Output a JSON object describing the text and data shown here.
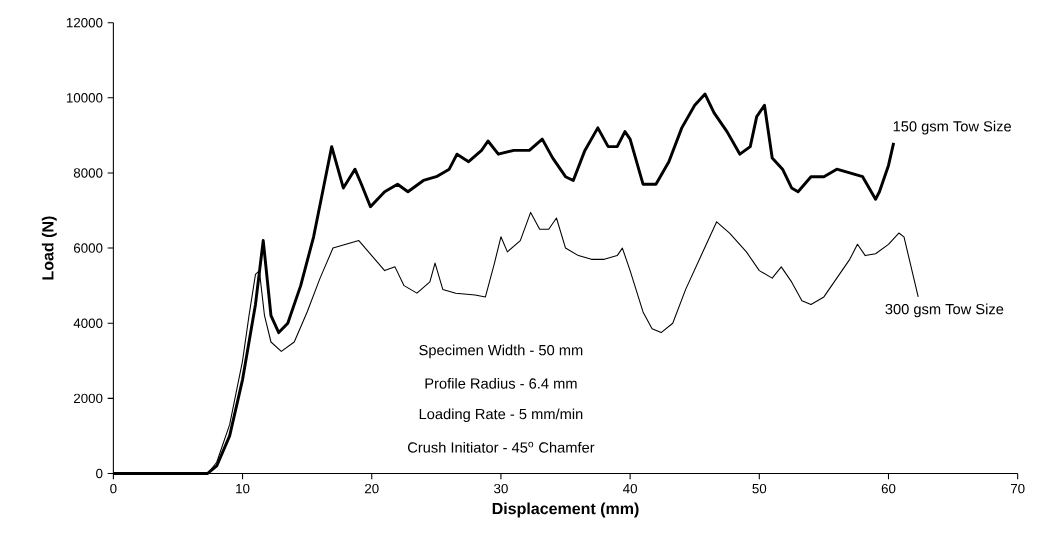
{
  "chart_data": {
    "type": "line",
    "xlabel": "Displacement (mm)",
    "ylabel": "Load (N)",
    "xlim": [
      0,
      70
    ],
    "ylim": [
      0,
      12000
    ],
    "xticks": [
      0,
      10,
      20,
      30,
      40,
      50,
      60,
      70
    ],
    "yticks": [
      0,
      2000,
      4000,
      6000,
      8000,
      10000,
      12000
    ],
    "grid": false,
    "legend": false,
    "marker": "none",
    "line_style": "solid",
    "series": [
      {
        "name": "150 gsm Tow Size",
        "color": "#000000",
        "x": [
          0,
          7.3,
          8,
          9,
          10,
          11,
          11.6,
          12.2,
          12.8,
          13.5,
          14.5,
          15.5,
          16.2,
          16.9,
          17.8,
          18.7,
          19.2,
          19.9,
          21,
          22,
          22.8,
          24,
          25,
          26,
          26.6,
          27.5,
          28.5,
          29,
          29.8,
          31,
          32.2,
          33.2,
          34,
          35,
          35.6,
          36.5,
          37.5,
          38.3,
          39,
          39.6,
          40,
          41,
          42,
          43,
          44,
          45,
          45.8,
          46.5,
          47.5,
          48.5,
          49.3,
          49.8,
          50.4,
          51,
          51.8,
          52.5,
          53,
          54,
          55,
          56,
          57,
          58,
          58.5,
          59,
          59.3,
          60,
          60.4
        ],
        "values": [
          0,
          0,
          200,
          1000,
          2500,
          4500,
          6200,
          4200,
          3750,
          4000,
          5000,
          6300,
          7500,
          8700,
          7600,
          8100,
          7700,
          7100,
          7500,
          7700,
          7500,
          7800,
          7900,
          8100,
          8500,
          8300,
          8600,
          8850,
          8500,
          8600,
          8600,
          8900,
          8400,
          7900,
          7800,
          8600,
          9200,
          8700,
          8700,
          9100,
          8900,
          7700,
          7700,
          8300,
          9200,
          9800,
          10100,
          9600,
          9100,
          8500,
          8700,
          9500,
          9800,
          8400,
          8100,
          7600,
          7500,
          7900,
          7900,
          8100,
          8000,
          7900,
          7600,
          7300,
          7500,
          8200,
          8800
        ]
      },
      {
        "name": "300 gsm Tow Size",
        "color": "#000000",
        "x": [
          0,
          7.3,
          8,
          9,
          10,
          10.5,
          11,
          11.3,
          11.7,
          12.2,
          13,
          14,
          15,
          16,
          17,
          18,
          19,
          20,
          21,
          21.8,
          22.5,
          23.5,
          24.5,
          24.9,
          25.5,
          26.5,
          28,
          28.8,
          29.5,
          30,
          30.5,
          31.5,
          32.3,
          33,
          33.7,
          34.3,
          35,
          36,
          37,
          38,
          39,
          39.4,
          40,
          41,
          41.7,
          42.4,
          43.3,
          44.3,
          45.5,
          46.7,
          47.7,
          49,
          50,
          51,
          51.7,
          52.5,
          53.3,
          54,
          55,
          56,
          57,
          57.6,
          58.2,
          59,
          60,
          60.8,
          61.2,
          62.3
        ],
        "values": [
          0,
          0,
          300,
          1300,
          3000,
          4200,
          5300,
          5400,
          4200,
          3500,
          3250,
          3500,
          4300,
          5200,
          6000,
          6100,
          6200,
          5800,
          5400,
          5500,
          5000,
          4800,
          5100,
          5600,
          4900,
          4800,
          4750,
          4700,
          5600,
          6300,
          5900,
          6200,
          6950,
          6500,
          6500,
          6800,
          6000,
          5800,
          5700,
          5700,
          5800,
          6000,
          5400,
          4300,
          3850,
          3750,
          4000,
          4900,
          5800,
          6700,
          6400,
          5900,
          5400,
          5200,
          5500,
          5100,
          4600,
          4500,
          4700,
          5200,
          5700,
          6100,
          5800,
          5850,
          6100,
          6400,
          6300,
          4700
        ]
      }
    ],
    "annotations": [
      "Specimen Width - 50 mm",
      "Profile Radius - 6.4 mm",
      "Loading Rate - 5 mm/min",
      "Crush Initiator - 45$^{o}$ Chamfer"
    ]
  }
}
